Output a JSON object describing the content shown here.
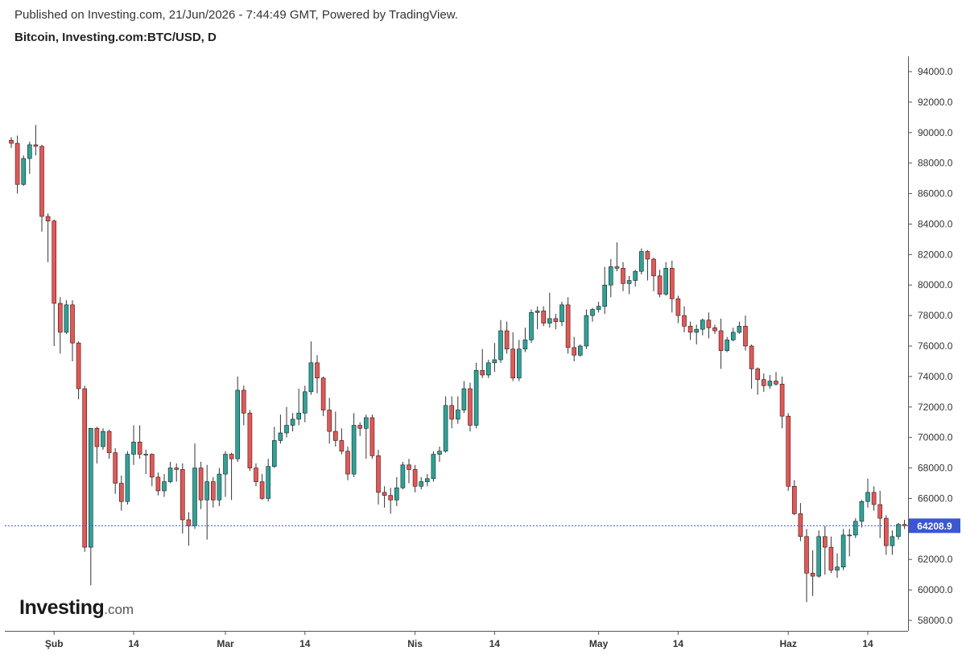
{
  "header": {
    "published": "Published on Investing.com, 21/Jun/2026 - 7:44:49 GMT, Powered by TradingView.",
    "symbol": "Bitcoin, Investing.com:BTC/USD, D"
  },
  "logo": {
    "brand": "Investing",
    "tld": ".com"
  },
  "colors": {
    "up": "#26a69a",
    "down": "#ef5350",
    "wick": "#333333",
    "price_line": "#3a56d4",
    "price_label_bg": "#3a56d4"
  },
  "chart_data": {
    "type": "candlestick",
    "title": "Bitcoin, Investing.com:BTC/USD, D",
    "ylim": [
      57000,
      95000
    ],
    "y_ticks": [
      58000,
      60000,
      62000,
      64000,
      66000,
      68000,
      70000,
      72000,
      74000,
      76000,
      78000,
      80000,
      82000,
      84000,
      86000,
      88000,
      90000,
      92000,
      94000
    ],
    "y_tick_labels": [
      "58000.0",
      "60000.0",
      "62000.0",
      "64000.0",
      "66000.0",
      "68000.0",
      "70000.0",
      "72000.0",
      "74000.0",
      "76000.0",
      "78000.0",
      "80000.0",
      "82000.0",
      "84000.0",
      "86000.0",
      "88000.0",
      "90000.0",
      "92000.0",
      "94000.0"
    ],
    "x_ticks": [
      {
        "label": "Şub",
        "index": 7
      },
      {
        "label": "14",
        "index": 20
      },
      {
        "label": "Mar",
        "index": 35
      },
      {
        "label": "14",
        "index": 48
      },
      {
        "label": "Nis",
        "index": 66
      },
      {
        "label": "14",
        "index": 79
      },
      {
        "label": "May",
        "index": 96
      },
      {
        "label": "14",
        "index": 109
      },
      {
        "label": "Haz",
        "index": 127
      },
      {
        "label": "14",
        "index": 140
      }
    ],
    "last_price": 64208.9,
    "last_price_label": "64208.9",
    "candles": [
      [
        89500,
        89700,
        89000,
        89300
      ],
      [
        89300,
        89800,
        86000,
        86600
      ],
      [
        86600,
        88500,
        86500,
        88300
      ],
      [
        88300,
        89400,
        87300,
        89200
      ],
      [
        89200,
        90500,
        88500,
        89100
      ],
      [
        89100,
        89200,
        83500,
        84500
      ],
      [
        84500,
        84700,
        81500,
        84200
      ],
      [
        84200,
        84300,
        76000,
        78800
      ],
      [
        78800,
        79200,
        75500,
        76900
      ],
      [
        76900,
        79000,
        76800,
        78700
      ],
      [
        78700,
        79000,
        75000,
        76200
      ],
      [
        76200,
        76300,
        72500,
        73200
      ],
      [
        73200,
        73400,
        62500,
        62800
      ],
      [
        62800,
        70600,
        60300,
        70600
      ],
      [
        70600,
        70700,
        68300,
        69400
      ],
      [
        69400,
        70600,
        69200,
        70400
      ],
      [
        70400,
        70500,
        68600,
        69000
      ],
      [
        69000,
        69300,
        66300,
        67000
      ],
      [
        67000,
        67500,
        65200,
        65800
      ],
      [
        65800,
        69100,
        65600,
        68900
      ],
      [
        68900,
        70800,
        68200,
        69700
      ],
      [
        69700,
        70800,
        68600,
        68900
      ],
      [
        68900,
        69200,
        67600,
        68900
      ],
      [
        68900,
        68950,
        66800,
        67400
      ],
      [
        67400,
        67700,
        66200,
        66500
      ],
      [
        66500,
        67600,
        66100,
        67100
      ],
      [
        67100,
        68400,
        67000,
        68000
      ],
      [
        68000,
        68300,
        67100,
        67900
      ],
      [
        67900,
        68300,
        63700,
        64600
      ],
      [
        64600,
        65100,
        62900,
        64200
      ],
      [
        64200,
        69600,
        64000,
        68000
      ],
      [
        68000,
        68400,
        65300,
        65900
      ],
      [
        65900,
        68200,
        63300,
        67100
      ],
      [
        67100,
        67400,
        65400,
        65900
      ],
      [
        65900,
        68000,
        65500,
        67600
      ],
      [
        67600,
        69100,
        66100,
        68900
      ],
      [
        68900,
        69000,
        65900,
        68600
      ],
      [
        68600,
        74000,
        68400,
        73100
      ],
      [
        73100,
        73400,
        70800,
        71600
      ],
      [
        71600,
        71800,
        67800,
        68000
      ],
      [
        68000,
        68300,
        66800,
        67100
      ],
      [
        67100,
        67600,
        65900,
        66000
      ],
      [
        66000,
        68600,
        65800,
        68100
      ],
      [
        68100,
        70700,
        68000,
        69800
      ],
      [
        69800,
        71500,
        69600,
        70300
      ],
      [
        70300,
        72000,
        70000,
        70800
      ],
      [
        70800,
        71600,
        70400,
        71200
      ],
      [
        71200,
        73200,
        70800,
        71600
      ],
      [
        71600,
        73400,
        71000,
        73000
      ],
      [
        73000,
        76300,
        72800,
        74900
      ],
      [
        74900,
        75400,
        72900,
        73900
      ],
      [
        73900,
        74000,
        71400,
        71800
      ],
      [
        71800,
        72600,
        69600,
        70400
      ],
      [
        70400,
        71700,
        69400,
        69800
      ],
      [
        69800,
        70600,
        68900,
        69100
      ],
      [
        69100,
        69400,
        67200,
        67600
      ],
      [
        67600,
        71600,
        67400,
        70800
      ],
      [
        70800,
        71000,
        70100,
        70600
      ],
      [
        70600,
        71500,
        68600,
        71300
      ],
      [
        71300,
        71500,
        68600,
        68800
      ],
      [
        68800,
        69200,
        65600,
        66400
      ],
      [
        66400,
        66800,
        65400,
        66200
      ],
      [
        66200,
        66700,
        65000,
        65900
      ],
      [
        65900,
        67400,
        65500,
        66700
      ],
      [
        66700,
        68400,
        66600,
        68200
      ],
      [
        68200,
        68600,
        67000,
        67900
      ],
      [
        67900,
        68200,
        66400,
        66800
      ],
      [
        66800,
        67400,
        66600,
        67100
      ],
      [
        67100,
        67600,
        66800,
        67300
      ],
      [
        67300,
        69100,
        67100,
        68900
      ],
      [
        68900,
        69400,
        68400,
        69100
      ],
      [
        69100,
        72700,
        69000,
        72100
      ],
      [
        72100,
        72700,
        70600,
        71200
      ],
      [
        71200,
        72700,
        70900,
        71800
      ],
      [
        71800,
        73700,
        71600,
        73200
      ],
      [
        73200,
        73600,
        70400,
        70800
      ],
      [
        70800,
        74900,
        70600,
        74400
      ],
      [
        74400,
        75800,
        73900,
        74100
      ],
      [
        74100,
        75100,
        73900,
        74900
      ],
      [
        74900,
        76200,
        74300,
        75100
      ],
      [
        75100,
        77700,
        74900,
        77000
      ],
      [
        77000,
        77600,
        75500,
        75800
      ],
      [
        75800,
        76900,
        73700,
        73900
      ],
      [
        73900,
        76400,
        73700,
        75800
      ],
      [
        75800,
        77200,
        75600,
        76400
      ],
      [
        76400,
        78400,
        76200,
        78200
      ],
      [
        78200,
        78600,
        77100,
        78300
      ],
      [
        78300,
        78600,
        77300,
        77500
      ],
      [
        77500,
        79500,
        77200,
        77800
      ],
      [
        77800,
        78100,
        77100,
        77600
      ],
      [
        77600,
        78900,
        77300,
        78700
      ],
      [
        78700,
        79200,
        75500,
        75900
      ],
      [
        75900,
        76600,
        75000,
        75400
      ],
      [
        75400,
        76100,
        75300,
        76000
      ],
      [
        76000,
        78400,
        75800,
        78000
      ],
      [
        78000,
        78500,
        77600,
        78400
      ],
      [
        78400,
        78900,
        78200,
        78600
      ],
      [
        78600,
        81200,
        78100,
        80000
      ],
      [
        80000,
        81700,
        79200,
        81200
      ],
      [
        81200,
        82800,
        80900,
        81100
      ],
      [
        81100,
        81500,
        79600,
        80100
      ],
      [
        80100,
        80600,
        79400,
        80300
      ],
      [
        80300,
        81000,
        79900,
        80900
      ],
      [
        80900,
        82400,
        80700,
        82200
      ],
      [
        82200,
        82300,
        80300,
        81700
      ],
      [
        81700,
        81800,
        79600,
        80600
      ],
      [
        80600,
        81000,
        79200,
        79400
      ],
      [
        79400,
        81500,
        79300,
        81100
      ],
      [
        81100,
        81600,
        78200,
        79100
      ],
      [
        79100,
        79300,
        77500,
        78000
      ],
      [
        78000,
        78600,
        76900,
        77300
      ],
      [
        77300,
        77600,
        76400,
        76900
      ],
      [
        76900,
        77400,
        76100,
        77100
      ],
      [
        77100,
        77800,
        76700,
        77700
      ],
      [
        77700,
        78200,
        76500,
        77200
      ],
      [
        77200,
        77400,
        76800,
        77000
      ],
      [
        77000,
        77800,
        74500,
        75700
      ],
      [
        75700,
        76600,
        75600,
        76400
      ],
      [
        76400,
        77200,
        76300,
        76900
      ],
      [
        76900,
        77600,
        76800,
        77300
      ],
      [
        77300,
        78000,
        75700,
        76000
      ],
      [
        76000,
        76100,
        73200,
        74500
      ],
      [
        74500,
        74600,
        72800,
        73800
      ],
      [
        73800,
        74200,
        73000,
        73400
      ],
      [
        73400,
        74100,
        73200,
        73700
      ],
      [
        73700,
        74300,
        73400,
        73500
      ],
      [
        73500,
        74000,
        70600,
        71400
      ],
      [
        71400,
        71600,
        66500,
        66800
      ],
      [
        66800,
        67200,
        64900,
        65000
      ],
      [
        65000,
        65700,
        63200,
        63500
      ],
      [
        63500,
        64000,
        59200,
        61100
      ],
      [
        61100,
        62600,
        59600,
        60900
      ],
      [
        60900,
        63900,
        60800,
        63500
      ],
      [
        63500,
        64200,
        61000,
        62800
      ],
      [
        62800,
        63500,
        61100,
        61300
      ],
      [
        61300,
        62400,
        60800,
        61500
      ],
      [
        61500,
        64000,
        61300,
        63600
      ],
      [
        63600,
        64000,
        62200,
        63600
      ],
      [
        63600,
        64700,
        63400,
        64500
      ],
      [
        64500,
        65900,
        64100,
        65800
      ],
      [
        65800,
        67300,
        65400,
        66400
      ],
      [
        66400,
        66800,
        65200,
        65600
      ],
      [
        65600,
        66500,
        63400,
        64700
      ],
      [
        64700,
        64900,
        62300,
        62900
      ],
      [
        62900,
        63900,
        62300,
        63500
      ],
      [
        63500,
        64400,
        63300,
        64300
      ],
      [
        64300,
        64600,
        64000,
        64209
      ]
    ]
  }
}
